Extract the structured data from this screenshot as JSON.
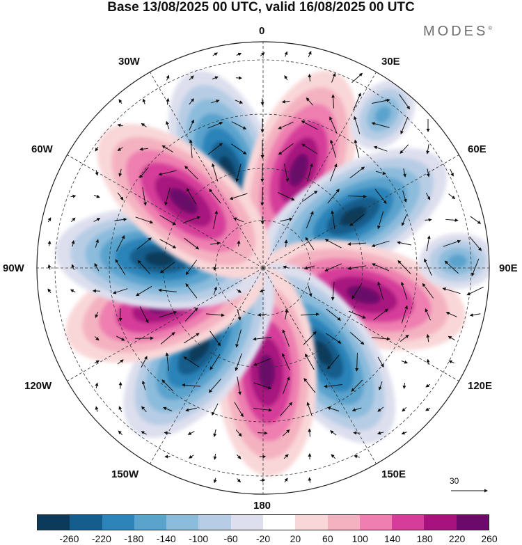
{
  "title": "Base 13/08/2025 00 UTC, valid 16/08/2025 00 UTC",
  "logo": "MODES",
  "logo_mark": "®",
  "longitude_labels": {
    "lon_0": "0",
    "lon_30e": "30E",
    "lon_60e": "60E",
    "lon_90e": "90E",
    "lon_120e": "120E",
    "lon_150e": "150E",
    "lon_180": "180",
    "lon_150w": "150W",
    "lon_120w": "120W",
    "lon_90w": "90W",
    "lon_60w": "60W",
    "lon_30w": "30W"
  },
  "reference_vector": {
    "label": "30"
  },
  "colorbar": {
    "colors": [
      "#0b3a5a",
      "#145d8c",
      "#2c84b9",
      "#5aa3cd",
      "#8cbcdc",
      "#b7cde5",
      "#dddfee",
      "#ffffff",
      "#f9d7d8",
      "#f4b2c1",
      "#ee7fb0",
      "#d63d9a",
      "#a8127f",
      "#6b0a6b"
    ],
    "tick_labels": [
      "-260",
      "-220",
      "-180",
      "-140",
      "-100",
      "-60",
      "-20",
      "20",
      "60",
      "100",
      "140",
      "180",
      "220",
      "260"
    ]
  },
  "anomaly_centers": [
    {
      "name": "negative-anomaly-sector-0",
      "lon_deg": -20,
      "sign": "negative",
      "strength": "strong"
    },
    {
      "name": "positive-anomaly-sector-30e",
      "lon_deg": 20,
      "sign": "positive",
      "strength": "strong"
    },
    {
      "name": "negative-anomaly-sector-60e",
      "lon_deg": 60,
      "sign": "negative",
      "strength": "strong"
    },
    {
      "name": "positive-anomaly-sector-100e",
      "lon_deg": 105,
      "sign": "positive",
      "strength": "strong"
    },
    {
      "name": "negative-anomaly-sector-140e",
      "lon_deg": 145,
      "sign": "negative",
      "strength": "strong"
    },
    {
      "name": "positive-anomaly-sector-180",
      "lon_deg": 178,
      "sign": "positive",
      "strength": "strong"
    },
    {
      "name": "negative-anomaly-sector-140w",
      "lon_deg": -142,
      "sign": "negative",
      "strength": "strong"
    },
    {
      "name": "positive-anomaly-sector-110w",
      "lon_deg": -110,
      "sign": "positive",
      "strength": "strong"
    },
    {
      "name": "negative-anomaly-sector-90w",
      "lon_deg": -85,
      "sign": "negative",
      "strength": "strong"
    },
    {
      "name": "positive-anomaly-sector-60w",
      "lon_deg": -50,
      "sign": "positive",
      "strength": "strong"
    },
    {
      "name": "weak-negative-anomaly-sector-40e",
      "lon_deg": 38,
      "sign": "negative",
      "strength": "weak"
    },
    {
      "name": "weak-negative-anomaly-sector-90e",
      "lon_deg": 88,
      "sign": "negative",
      "strength": "weak"
    }
  ]
}
